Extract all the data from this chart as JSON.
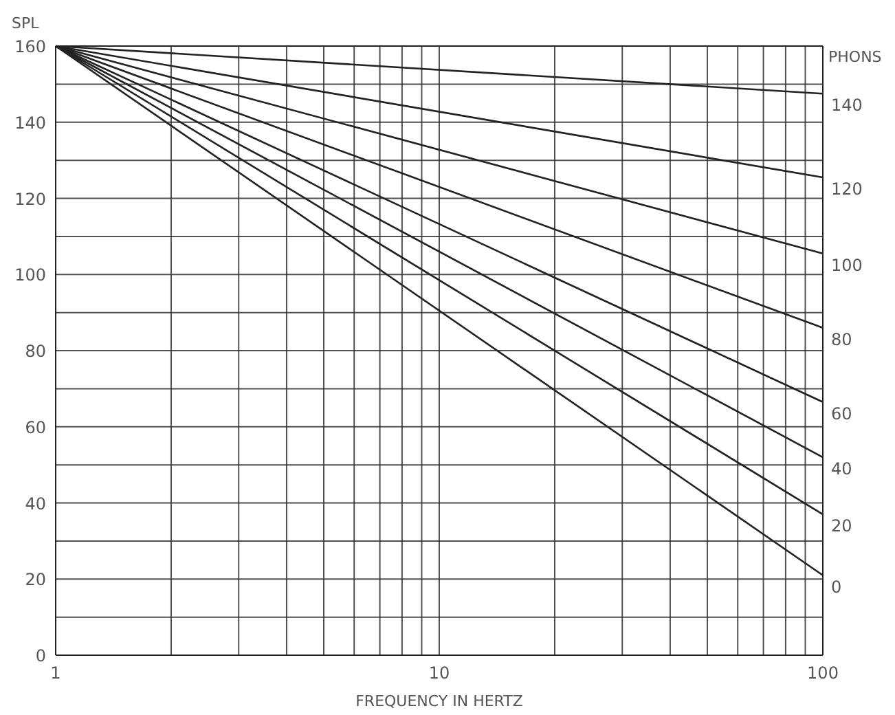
{
  "chart_data": {
    "type": "line",
    "ylabel": "SPL",
    "xlabel": "FREQUENCY IN HERTZ",
    "log": "x",
    "grid": true,
    "marker": "none",
    "line_style": "solid",
    "xlim": [
      1,
      100
    ],
    "xticks": [
      1,
      {
        "value": 2,
        "label": null
      },
      {
        "value": 3,
        "label": null
      },
      {
        "value": 4,
        "label": null
      },
      {
        "value": 5,
        "label": null
      },
      {
        "value": 6,
        "label": null
      },
      {
        "value": 7,
        "label": null
      },
      {
        "value": 8,
        "label": null
      },
      {
        "value": 9,
        "label": null
      },
      10,
      {
        "value": 20,
        "label": null
      },
      {
        "value": 30,
        "label": null
      },
      {
        "value": 40,
        "label": null
      },
      {
        "value": 50,
        "label": null
      },
      {
        "value": 60,
        "label": null
      },
      {
        "value": 70,
        "label": null
      },
      {
        "value": 80,
        "label": null
      },
      {
        "value": 90,
        "label": null
      },
      100
    ],
    "ylim": [
      0,
      160
    ],
    "yticks": [
      0,
      {
        "value": 10,
        "label": null
      },
      20,
      {
        "value": 30,
        "label": null
      },
      40,
      {
        "value": 50,
        "label": null
      },
      60,
      {
        "value": 70,
        "label": null
      },
      80,
      {
        "value": 90,
        "label": null
      },
      100,
      {
        "value": 110,
        "label": null
      },
      120,
      {
        "value": 130,
        "label": null
      },
      140,
      {
        "value": 150,
        "label": null
      },
      160
    ],
    "annotations": [
      "PHONS"
    ],
    "x": [
      1,
      100
    ],
    "series": [
      {
        "name": "140",
        "color": "#222222",
        "values": [
          160,
          147.5
        ]
      },
      {
        "name": "120",
        "color": "#222222",
        "values": [
          160,
          125.5
        ]
      },
      {
        "name": "100",
        "color": "#222222",
        "values": [
          160,
          105.5
        ]
      },
      {
        "name": "80",
        "color": "#222222",
        "values": [
          160,
          86
        ]
      },
      {
        "name": "60",
        "color": "#222222",
        "values": [
          160,
          66.5
        ]
      },
      {
        "name": "40",
        "color": "#222222",
        "values": [
          160,
          52
        ]
      },
      {
        "name": "20",
        "color": "#222222",
        "values": [
          160,
          37
        ]
      },
      {
        "name": "0",
        "color": "#222222",
        "values": [
          160,
          21
        ]
      }
    ]
  }
}
